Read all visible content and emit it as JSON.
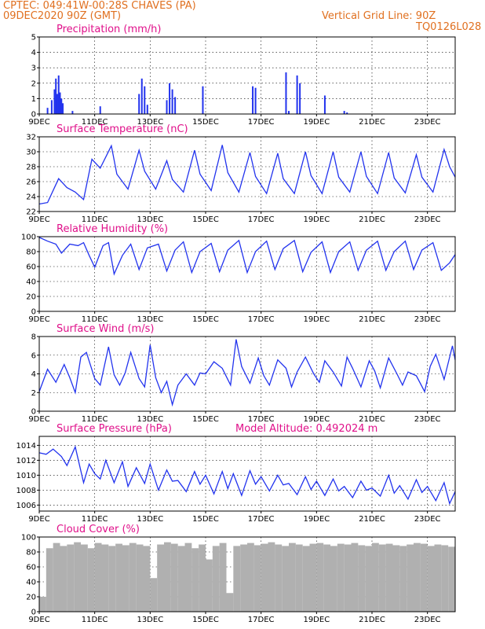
{
  "header": {
    "line1": "CPTEC:  049:41W-00:28S  CHAVES (PA)",
    "line2": "09DEC2020 90Z (GMT)",
    "grid_note": "Vertical Grid Line: 90Z",
    "code": "TQ0126L028"
  },
  "colors": {
    "header": "#e07020",
    "title": "#e0108a",
    "series": "#2233ee",
    "cloud": "#b0b0b0"
  },
  "x_ticks": [
    "9DEC",
    "11DEC",
    "13DEC",
    "15DEC",
    "17DEC",
    "19DEC",
    "21DEC",
    "23DEC"
  ],
  "chart_data": [
    {
      "type": "bar",
      "title": "Precipitation (mm/h)",
      "ylim": [
        0,
        5
      ],
      "yticks": [
        0,
        1,
        2,
        3,
        4,
        5
      ],
      "xlim_days": [
        0,
        15
      ],
      "x_days": [
        0.3,
        0.45,
        0.55,
        0.6,
        0.65,
        0.7,
        0.75,
        0.8,
        0.85,
        1.2,
        2.2,
        3.6,
        3.7,
        3.8,
        3.9,
        4.6,
        4.7,
        4.8,
        4.9,
        5.9,
        7.7,
        7.8,
        8.9,
        9.0,
        9.3,
        9.4,
        10.3,
        11.0,
        11.1
      ],
      "values": [
        0.4,
        0.9,
        1.6,
        2.3,
        1.3,
        2.5,
        1.4,
        1.0,
        0.7,
        0.2,
        0.5,
        1.3,
        2.3,
        1.8,
        0.6,
        0.9,
        2.0,
        1.6,
        1.1,
        1.8,
        1.8,
        1.7,
        2.7,
        0.2,
        2.5,
        2.0,
        1.2,
        0.2,
        0.1
      ]
    },
    {
      "type": "line",
      "title": "Surface Temperature (nC)",
      "ylim": [
        22,
        32
      ],
      "yticks": [
        22,
        24,
        26,
        28,
        30,
        32
      ],
      "xlim_days": [
        0,
        15
      ],
      "x_days": [
        0,
        0.3,
        0.7,
        1.0,
        1.3,
        1.6,
        1.9,
        2.2,
        2.6,
        2.8,
        3.2,
        3.6,
        3.8,
        4.2,
        4.6,
        4.8,
        5.2,
        5.6,
        5.8,
        6.2,
        6.6,
        6.8,
        7.2,
        7.6,
        7.8,
        8.2,
        8.6,
        8.8,
        9.2,
        9.6,
        9.8,
        10.2,
        10.6,
        10.8,
        11.2,
        11.6,
        11.8,
        12.2,
        12.6,
        12.8,
        13.2,
        13.6,
        13.8,
        14.2,
        14.6,
        14.8,
        15.0
      ],
      "values": [
        23,
        23.2,
        26.4,
        25.2,
        24.6,
        23.6,
        29.0,
        27.8,
        30.8,
        27.0,
        25.0,
        30.2,
        27.4,
        25.0,
        28.8,
        26.3,
        24.6,
        30.2,
        27.0,
        24.8,
        30.9,
        27.2,
        24.6,
        29.9,
        26.7,
        24.4,
        29.8,
        26.4,
        24.4,
        30.0,
        26.8,
        24.4,
        30.0,
        26.6,
        24.6,
        30.0,
        26.7,
        24.4,
        29.9,
        26.5,
        24.5,
        29.6,
        26.6,
        24.6,
        30.3,
        28.0,
        26.6
      ]
    },
    {
      "type": "line",
      "title": "Relative Humidity (%)",
      "ylim": [
        0,
        100
      ],
      "yticks": [
        0,
        20,
        40,
        60,
        80,
        100
      ],
      "xlim_days": [
        0,
        15
      ],
      "x_days": [
        0,
        0.3,
        0.6,
        0.8,
        1.1,
        1.4,
        1.6,
        1.8,
        2.0,
        2.3,
        2.5,
        2.7,
        3.0,
        3.3,
        3.6,
        3.9,
        4.3,
        4.6,
        4.9,
        5.2,
        5.5,
        5.8,
        6.2,
        6.5,
        6.8,
        7.2,
        7.5,
        7.8,
        8.2,
        8.5,
        8.8,
        9.2,
        9.5,
        9.8,
        10.2,
        10.5,
        10.8,
        11.2,
        11.5,
        11.8,
        12.2,
        12.5,
        12.8,
        13.2,
        13.5,
        13.8,
        14.2,
        14.5,
        14.8,
        15.0
      ],
      "values": [
        99,
        94,
        90,
        78,
        90,
        88,
        92,
        75,
        59,
        88,
        92,
        50,
        75,
        90,
        56,
        85,
        90,
        54,
        82,
        93,
        52,
        80,
        91,
        53,
        82,
        95,
        52,
        80,
        94,
        56,
        84,
        95,
        53,
        79,
        93,
        52,
        80,
        93,
        55,
        82,
        94,
        55,
        80,
        94,
        56,
        82,
        92,
        55,
        65,
        76
      ]
    },
    {
      "type": "line",
      "title": "Surface Wind (m/s)",
      "ylim": [
        0,
        8
      ],
      "yticks": [
        0,
        2,
        4,
        6,
        8
      ],
      "xlim_days": [
        0,
        15
      ],
      "x_days": [
        0,
        0.3,
        0.6,
        0.9,
        1.1,
        1.3,
        1.5,
        1.7,
        2.0,
        2.2,
        2.5,
        2.7,
        2.9,
        3.1,
        3.3,
        3.6,
        3.8,
        4.0,
        4.2,
        4.4,
        4.6,
        4.8,
        5.0,
        5.3,
        5.6,
        5.8,
        6.0,
        6.3,
        6.6,
        6.9,
        7.1,
        7.3,
        7.6,
        7.9,
        8.1,
        8.3,
        8.6,
        8.9,
        9.1,
        9.3,
        9.6,
        9.9,
        10.1,
        10.3,
        10.6,
        10.9,
        11.1,
        11.3,
        11.6,
        11.9,
        12.1,
        12.3,
        12.6,
        12.9,
        13.1,
        13.3,
        13.6,
        13.9,
        14.1,
        14.3,
        14.6,
        14.9,
        15.0
      ],
      "values": [
        2.1,
        4.5,
        3.1,
        5.0,
        3.6,
        2.0,
        5.8,
        6.3,
        3.5,
        2.8,
        6.9,
        3.9,
        2.8,
        4.1,
        6.3,
        3.5,
        2.6,
        7.1,
        3.6,
        2.0,
        3.2,
        0.7,
        2.8,
        4.0,
        2.8,
        4.1,
        4.0,
        5.3,
        4.6,
        2.8,
        7.7,
        4.8,
        3.0,
        5.7,
        3.8,
        2.8,
        5.5,
        4.6,
        2.6,
        4.2,
        5.8,
        4.0,
        3.1,
        5.4,
        4.2,
        2.7,
        5.8,
        4.6,
        2.6,
        5.4,
        4.3,
        2.5,
        5.7,
        4.0,
        2.8,
        4.2,
        3.8,
        2.1,
        4.8,
        6.1,
        3.4,
        7.0,
        5.5
      ]
    },
    {
      "type": "line",
      "title": "Surface Pressure (hPa)",
      "annotation": "Model Altitude: 0.492024 m",
      "ylim": [
        1005.2,
        1015.2
      ],
      "yticks": [
        1006,
        1008,
        1010,
        1012,
        1014
      ],
      "xlim_days": [
        0,
        15
      ],
      "x_days": [
        0,
        0.25,
        0.5,
        0.8,
        1.0,
        1.3,
        1.6,
        1.8,
        2.0,
        2.2,
        2.4,
        2.7,
        3.0,
        3.2,
        3.5,
        3.8,
        4.0,
        4.3,
        4.6,
        4.8,
        5.0,
        5.3,
        5.6,
        5.8,
        6.0,
        6.3,
        6.6,
        6.8,
        7.0,
        7.3,
        7.6,
        7.8,
        8.0,
        8.3,
        8.6,
        8.8,
        9.0,
        9.3,
        9.6,
        9.8,
        10.0,
        10.3,
        10.6,
        10.8,
        11.0,
        11.3,
        11.6,
        11.8,
        12.0,
        12.3,
        12.6,
        12.8,
        13.0,
        13.3,
        13.6,
        13.8,
        14.0,
        14.3,
        14.6,
        14.8,
        15.0
      ],
      "values": [
        1013.0,
        1012.8,
        1013.5,
        1012.5,
        1011.3,
        1013.8,
        1009.0,
        1011.5,
        1010.2,
        1009.5,
        1012.0,
        1009.0,
        1011.8,
        1008.5,
        1011.0,
        1008.9,
        1011.5,
        1008.0,
        1010.7,
        1009.2,
        1009.3,
        1007.8,
        1010.5,
        1008.8,
        1010.0,
        1007.5,
        1010.5,
        1008.2,
        1010.2,
        1007.3,
        1010.6,
        1008.8,
        1009.8,
        1007.9,
        1010.0,
        1008.7,
        1008.9,
        1007.4,
        1009.8,
        1008.1,
        1009.2,
        1007.3,
        1009.5,
        1007.9,
        1008.5,
        1007.0,
        1009.2,
        1008.0,
        1008.3,
        1007.2,
        1010.0,
        1007.6,
        1008.6,
        1006.8,
        1009.4,
        1007.7,
        1008.5,
        1006.6,
        1009.0,
        1006.2,
        1007.8
      ]
    },
    {
      "type": "bar",
      "title": "Cloud Cover (%)",
      "ylim": [
        0,
        100
      ],
      "yticks": [
        0,
        20,
        40,
        60,
        80,
        100
      ],
      "xlim_days": [
        0,
        15
      ],
      "x_days": [
        0.0,
        0.25,
        0.5,
        0.75,
        1.0,
        1.25,
        1.5,
        1.75,
        2.0,
        2.25,
        2.5,
        2.75,
        3.0,
        3.25,
        3.5,
        3.75,
        4.0,
        4.25,
        4.5,
        4.75,
        5.0,
        5.25,
        5.5,
        5.75,
        6.0,
        6.25,
        6.5,
        6.75,
        7.0,
        7.25,
        7.5,
        7.75,
        8.0,
        8.25,
        8.5,
        8.75,
        9.0,
        9.25,
        9.5,
        9.75,
        10.0,
        10.25,
        10.5,
        10.75,
        11.0,
        11.25,
        11.5,
        11.75,
        12.0,
        12.25,
        12.5,
        12.75,
        13.0,
        13.25,
        13.5,
        13.75,
        14.0,
        14.25,
        14.5,
        14.75
      ],
      "values": [
        20,
        85,
        92,
        88,
        90,
        93,
        90,
        85,
        92,
        90,
        88,
        91,
        89,
        92,
        90,
        88,
        45,
        90,
        93,
        91,
        88,
        92,
        85,
        90,
        70,
        88,
        92,
        25,
        88,
        90,
        92,
        89,
        91,
        93,
        90,
        88,
        92,
        90,
        88,
        91,
        92,
        90,
        88,
        91,
        90,
        92,
        89,
        88,
        92,
        90,
        91,
        89,
        88,
        90,
        92,
        91,
        88,
        90,
        89,
        87
      ]
    }
  ]
}
